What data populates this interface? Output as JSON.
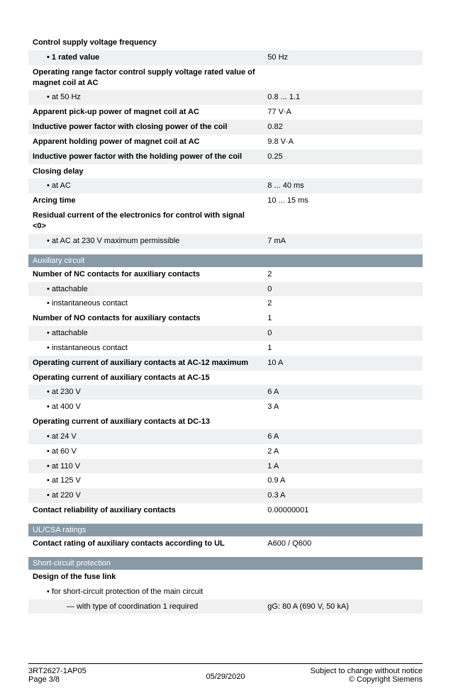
{
  "colors": {
    "section_bg": "#889aa6",
    "section_fg": "#ffffff",
    "row_alt_bg": "#eef0f1"
  },
  "rows_top": [
    {
      "label": "Control supply voltage frequency",
      "value": "",
      "bold": true,
      "indent": 0,
      "alt": false,
      "prefix": ""
    },
    {
      "label": "1 rated value",
      "value": "50 Hz",
      "bold": true,
      "indent": 1,
      "alt": true,
      "prefix": "bullet"
    },
    {
      "label": "Operating range factor control supply voltage rated value of magnet coil at AC",
      "value": "",
      "bold": true,
      "indent": 0,
      "alt": false,
      "prefix": ""
    },
    {
      "label": "at 50 Hz",
      "value": "0.8 ... 1.1",
      "bold": false,
      "indent": 1,
      "alt": true,
      "prefix": "bullet"
    },
    {
      "label": "Apparent pick-up power of magnet coil at AC",
      "value": "77 V·A",
      "bold": true,
      "indent": 0,
      "alt": false,
      "prefix": ""
    },
    {
      "label": "Inductive power factor with closing power of the coil",
      "value": "0.82",
      "bold": true,
      "indent": 0,
      "alt": true,
      "prefix": ""
    },
    {
      "label": "Apparent holding power of magnet coil at AC",
      "value": "9.8 V·A",
      "bold": true,
      "indent": 0,
      "alt": false,
      "prefix": ""
    },
    {
      "label": "Inductive power factor with the holding power of the coil",
      "value": "0.25",
      "bold": true,
      "indent": 0,
      "alt": true,
      "prefix": ""
    },
    {
      "label": "Closing delay",
      "value": "",
      "bold": true,
      "indent": 0,
      "alt": false,
      "prefix": ""
    },
    {
      "label": "at AC",
      "value": "8 ... 40 ms",
      "bold": false,
      "indent": 1,
      "alt": true,
      "prefix": "bullet"
    },
    {
      "label": "Arcing time",
      "value": "10 ... 15 ms",
      "bold": true,
      "indent": 0,
      "alt": false,
      "prefix": ""
    },
    {
      "label": "Residual current of the electronics for control with signal <0>",
      "value": "",
      "bold": true,
      "indent": 0,
      "alt": false,
      "prefix": ""
    },
    {
      "label": "at AC at 230 V maximum permissible",
      "value": "7 mA",
      "bold": false,
      "indent": 1,
      "alt": true,
      "prefix": "bullet"
    }
  ],
  "section_aux": "Auxiliary circuit",
  "rows_aux": [
    {
      "label": "Number of NC contacts for auxiliary contacts",
      "value": "2",
      "bold": true,
      "indent": 0,
      "alt": false,
      "prefix": ""
    },
    {
      "label": "attachable",
      "value": "0",
      "bold": false,
      "indent": 1,
      "alt": true,
      "prefix": "bullet"
    },
    {
      "label": "instantaneous contact",
      "value": "2",
      "bold": false,
      "indent": 1,
      "alt": false,
      "prefix": "bullet"
    },
    {
      "label": "Number of NO contacts for auxiliary contacts",
      "value": "1",
      "bold": true,
      "indent": 0,
      "alt": false,
      "prefix": ""
    },
    {
      "label": "attachable",
      "value": "0",
      "bold": false,
      "indent": 1,
      "alt": true,
      "prefix": "bullet"
    },
    {
      "label": "instantaneous contact",
      "value": "1",
      "bold": false,
      "indent": 1,
      "alt": false,
      "prefix": "bullet"
    },
    {
      "label": "Operating current of auxiliary contacts at AC-12 maximum",
      "value": "10 A",
      "bold": true,
      "indent": 0,
      "alt": true,
      "prefix": ""
    },
    {
      "label": "Operating current of auxiliary contacts at AC-15",
      "value": "",
      "bold": true,
      "indent": 0,
      "alt": false,
      "prefix": ""
    },
    {
      "label": "at 230 V",
      "value": "6 A",
      "bold": false,
      "indent": 1,
      "alt": true,
      "prefix": "bullet"
    },
    {
      "label": "at 400 V",
      "value": "3 A",
      "bold": false,
      "indent": 1,
      "alt": false,
      "prefix": "bullet"
    },
    {
      "label": "Operating current of auxiliary contacts at DC-13",
      "value": "",
      "bold": true,
      "indent": 0,
      "alt": false,
      "prefix": ""
    },
    {
      "label": "at 24 V",
      "value": "6 A",
      "bold": false,
      "indent": 1,
      "alt": true,
      "prefix": "bullet"
    },
    {
      "label": "at 60 V",
      "value": "2 A",
      "bold": false,
      "indent": 1,
      "alt": false,
      "prefix": "bullet"
    },
    {
      "label": "at 110 V",
      "value": "1 A",
      "bold": false,
      "indent": 1,
      "alt": true,
      "prefix": "bullet"
    },
    {
      "label": "at 125 V",
      "value": "0.9 A",
      "bold": false,
      "indent": 1,
      "alt": false,
      "prefix": "bullet"
    },
    {
      "label": "at 220 V",
      "value": "0.3 A",
      "bold": false,
      "indent": 1,
      "alt": true,
      "prefix": "bullet"
    },
    {
      "label": "Contact reliability of auxiliary contacts",
      "value": "0.00000001",
      "bold": true,
      "indent": 0,
      "alt": false,
      "prefix": ""
    }
  ],
  "section_ul": "UL/CSA ratings",
  "rows_ul": [
    {
      "label": "Contact rating of auxiliary contacts according to UL",
      "value": "A600 / Q600",
      "bold": true,
      "indent": 0,
      "alt": false,
      "prefix": ""
    }
  ],
  "section_sc": "Short-circuit protection",
  "rows_sc": [
    {
      "label": "Design of the fuse link",
      "value": "",
      "bold": true,
      "indent": 0,
      "alt": false,
      "prefix": ""
    },
    {
      "label": "for short-circuit protection of the main circuit",
      "value": "",
      "bold": false,
      "indent": 1,
      "alt": false,
      "prefix": "bullet"
    },
    {
      "label": "with type of coordination 1 required",
      "value": "gG: 80 A (690 V, 50 kA)",
      "bold": false,
      "indent": 2,
      "alt": true,
      "prefix": "dash"
    }
  ],
  "footer": {
    "part_no": "3RT2627-1AP05",
    "page": "Page 3/8",
    "date": "05/29/2020",
    "notice1": "Subject to change without notice",
    "notice2": "© Copyright Siemens"
  }
}
